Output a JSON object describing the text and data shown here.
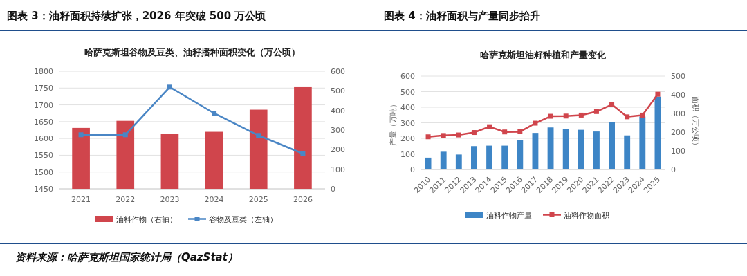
{
  "chart_data": [
    {
      "type": "bar",
      "title": "图表 3：油籽面积持续扩张，2026 年突破 500 万公顷",
      "subtitle": "哈萨克斯坦谷物及豆类、油籽播种面积变化（万公顷）",
      "categories": [
        "2021",
        "2022",
        "2023",
        "2024",
        "2025",
        "2026"
      ],
      "series": [
        {
          "name": "油料作物（右轴）",
          "color": "#d0454c",
          "axis": "y2",
          "values": [
            311,
            347,
            282,
            291,
            404,
            519
          ]
        },
        {
          "name": "谷物及豆类（左轴）",
          "color": "#4a86c5",
          "type": "line",
          "values": [
            1611,
            1611,
            1753,
            1675,
            1609,
            1555
          ]
        }
      ],
      "ylim": [
        1450,
        1800
      ],
      "yticks": [
        1450,
        1500,
        1550,
        1600,
        1650,
        1700,
        1750,
        1800
      ],
      "y2lim": [
        0,
        600
      ],
      "y2ticks": [
        0,
        100,
        200,
        300,
        400,
        500,
        600
      ],
      "grid": "y",
      "legend": "bottom",
      "marker": "square",
      "annotations": [
        "资料来源：哈萨克斯坦国家统计局（QazStat）"
      ]
    },
    {
      "type": "bar",
      "title": "图表 4：油籽面积与产量同步抬升",
      "subtitle": "哈萨克斯坦油籽种植和产量变化",
      "categories": [
        "2010",
        "2011",
        "2012",
        "2013",
        "2014",
        "2015",
        "2016",
        "2017",
        "2018",
        "2019",
        "2020",
        "2021",
        "2022",
        "2023",
        "2024",
        "2025"
      ],
      "series": [
        {
          "name": "油料作物产量",
          "color": "#3d85c6",
          "values": [
            76,
            114,
            96,
            150,
            153,
            153,
            190,
            235,
            270,
            258,
            255,
            244,
            305,
            219,
            340,
            468
          ]
        },
        {
          "name": "油料作物面积",
          "color": "#d0454c",
          "type": "line",
          "axis": "y2",
          "values": [
            175,
            182,
            185,
            198,
            229,
            201,
            202,
            248,
            285,
            286,
            291,
            310,
            348,
            282,
            291,
            403
          ]
        }
      ],
      "ylabel": "产量（万吨）",
      "y2label": "面积（万公顷）",
      "ylim": [
        0,
        600
      ],
      "yticks": [
        0,
        100,
        200,
        300,
        400,
        500,
        600
      ],
      "y2lim": [
        0,
        500
      ],
      "y2ticks": [
        0,
        100,
        200,
        300,
        400,
        500
      ],
      "grid": "y",
      "legend": "bottom",
      "marker": "square"
    }
  ]
}
